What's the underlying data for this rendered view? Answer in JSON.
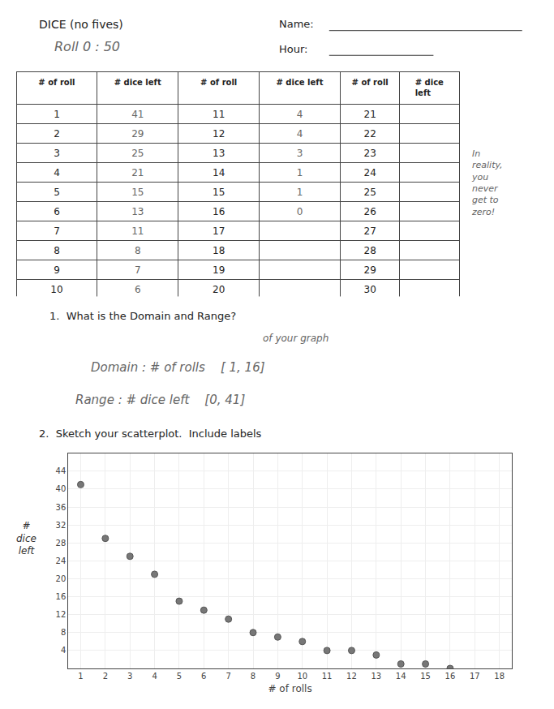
{
  "chart_data": [
    {
      "type": "table",
      "title": "DICE (no fives)",
      "headers": [
        "# of roll",
        "# dice left",
        "# of roll",
        "# dice left",
        "# of roll",
        "# dice left"
      ],
      "rows": [
        [
          1,
          41,
          11,
          4,
          21,
          null
        ],
        [
          2,
          29,
          12,
          4,
          22,
          null
        ],
        [
          3,
          25,
          13,
          3,
          23,
          null
        ],
        [
          4,
          21,
          14,
          1,
          24,
          null
        ],
        [
          5,
          15,
          15,
          1,
          25,
          null
        ],
        [
          6,
          13,
          16,
          0,
          26,
          null
        ],
        [
          7,
          11,
          17,
          null,
          27,
          null
        ],
        [
          8,
          8,
          18,
          null,
          28,
          null
        ],
        [
          9,
          7,
          19,
          null,
          29,
          null
        ],
        [
          10,
          6,
          20,
          null,
          30,
          null
        ]
      ],
      "annotations": [
        "Roll 0 : 50",
        "Name:",
        "Hour:",
        "In\nreality,\nyou\nnever\nget to\nzero!"
      ]
    },
    {
      "type": "scatter",
      "title": "2.  Sketch your scatterplot.  Include labels",
      "x": [
        1,
        2,
        3,
        4,
        5,
        6,
        7,
        8,
        9,
        10,
        11,
        12,
        13,
        14,
        15,
        16
      ],
      "values": [
        41,
        29,
        25,
        21,
        15,
        13,
        11,
        8,
        7,
        6,
        4,
        4,
        3,
        1,
        1,
        0
      ],
      "color": "#777777",
      "x_label": "# of rolls",
      "y_label": "#\ndice\nleft",
      "xlim": [
        0.5,
        18.5
      ],
      "ylim": [
        0,
        48
      ],
      "xticks": [
        1,
        2,
        3,
        4,
        5,
        6,
        7,
        8,
        9,
        10,
        11,
        12,
        13,
        14,
        15,
        16,
        17,
        18
      ],
      "yticks": [
        4,
        8,
        12,
        16,
        20,
        24,
        28,
        32,
        36,
        40,
        44
      ],
      "grid": true,
      "annotations": [
        "1.  What is the Domain and Range?",
        "of your graph",
        "Domain : # of rolls    [ 1, 16]",
        "Range : # dice left    [0, 41]"
      ]
    }
  ]
}
